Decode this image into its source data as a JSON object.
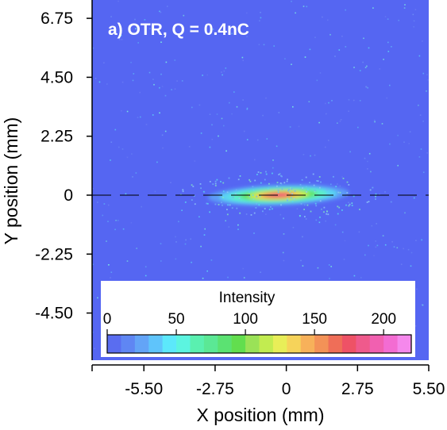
{
  "chart_data": {
    "type": "heatmap",
    "title": "a) OTR, Q = 0.4nC",
    "xlabel": "X position (mm)",
    "ylabel": "Y position (mm)",
    "xlim": [
      -7.5,
      5.5
    ],
    "ylim": [
      -6.3,
      7.45
    ],
    "x_ticks": [
      -5.5,
      -2.75,
      0,
      2.75,
      5.5
    ],
    "x_tick_labels": [
      "-5.50",
      "-2.75",
      "0",
      "2.75",
      "5.50"
    ],
    "y_ticks": [
      -4.5,
      -2.25,
      0,
      2.25,
      4.5,
      6.75
    ],
    "y_tick_labels": [
      "-4.50",
      "-2.25",
      "0",
      "2.25",
      "4.50",
      "6.75"
    ],
    "background_color": "#5566f2",
    "reference_line": {
      "y": 0,
      "style": "dashed",
      "color": "#000000"
    },
    "beam_spot": {
      "center_x": -0.3,
      "center_y": 0,
      "sigma_x_mm": 1.3,
      "sigma_y_mm": 0.17,
      "tilt_deg": -2,
      "peak_intensity": 140
    },
    "colorbar": {
      "label": "Intensity",
      "min": 0,
      "max": 220,
      "ticks": [
        0,
        50,
        100,
        150,
        200
      ],
      "tick_labels": [
        "0",
        "50",
        "100",
        "150",
        "200"
      ],
      "colors": [
        "#5a6df0",
        "#5f86f3",
        "#63a4f7",
        "#5fc4fb",
        "#5ce8fb",
        "#5cf4e0",
        "#5af0b0",
        "#5be895",
        "#5be272",
        "#62de4e",
        "#9ae257",
        "#c2ec50",
        "#e8ee58",
        "#f6d35a",
        "#f7b15a",
        "#f39257",
        "#ef6e58",
        "#ee5266",
        "#ef5a8c",
        "#f160b0",
        "#f36cd2",
        "#f588ec"
      ]
    }
  }
}
